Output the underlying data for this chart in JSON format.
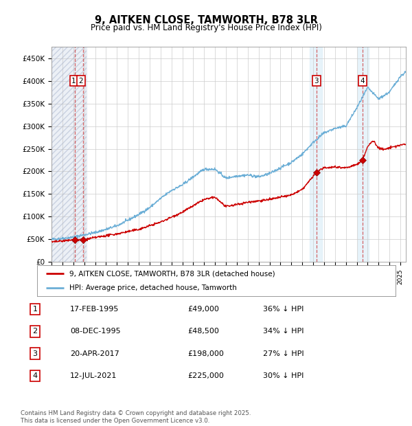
{
  "title": "9, AITKEN CLOSE, TAMWORTH, B78 3LR",
  "subtitle": "Price paid vs. HM Land Registry's House Price Index (HPI)",
  "ylim": [
    0,
    475000
  ],
  "yticks": [
    0,
    50000,
    100000,
    150000,
    200000,
    250000,
    300000,
    350000,
    400000,
    450000
  ],
  "ytick_labels": [
    "£0",
    "£50K",
    "£100K",
    "£150K",
    "£200K",
    "£250K",
    "£300K",
    "£350K",
    "£400K",
    "£450K"
  ],
  "xlim_start": 1993.0,
  "xlim_end": 2025.5,
  "hpi_color": "#6baed6",
  "price_color": "#cc0000",
  "grid_color": "#cccccc",
  "sale_dates": [
    1995.12,
    1995.92,
    2017.3,
    2021.53
  ],
  "sale_prices": [
    49000,
    48500,
    198000,
    225000
  ],
  "sale_labels": [
    "1",
    "2",
    "3",
    "4"
  ],
  "transactions": [
    {
      "label": "1",
      "date": "17-FEB-1995",
      "price": "£49,000",
      "hpi": "36% ↓ HPI"
    },
    {
      "label": "2",
      "date": "08-DEC-1995",
      "price": "£48,500",
      "hpi": "34% ↓ HPI"
    },
    {
      "label": "3",
      "date": "20-APR-2017",
      "price": "£198,000",
      "hpi": "27% ↓ HPI"
    },
    {
      "label": "4",
      "date": "12-JUL-2021",
      "price": "£225,000",
      "hpi": "30% ↓ HPI"
    }
  ],
  "legend_entry_price": "9, AITKEN CLOSE, TAMWORTH, B78 3LR (detached house)",
  "legend_entry_hpi": "HPI: Average price, detached house, Tamworth",
  "footer": "Contains HM Land Registry data © Crown copyright and database right 2025.\nThis data is licensed under the Open Government Licence v3.0.",
  "background_color": "#ffffff"
}
